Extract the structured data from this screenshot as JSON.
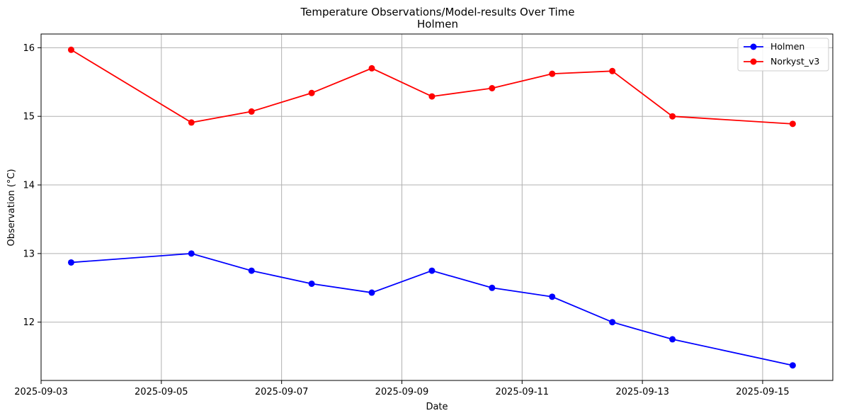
{
  "chart_data": {
    "type": "line",
    "title": "Temperature Observations/Model-results Over Time",
    "subtitle": "Holmen",
    "xlabel": "Date",
    "ylabel": "Observation (°C)",
    "x_axis_type": "date",
    "x_ticks": [
      "2025-09-03",
      "2025-09-05",
      "2025-09-07",
      "2025-09-09",
      "2025-09-11",
      "2025-09-13",
      "2025-09-15"
    ],
    "y_ticks": [
      12,
      13,
      14,
      15,
      16
    ],
    "xlim": [
      "2025-09-03 00:00",
      "2025-09-16 04:00"
    ],
    "ylim": [
      11.15,
      16.2
    ],
    "grid": true,
    "legend_position": "upper right",
    "series": [
      {
        "name": "Holmen",
        "color": "#0000ff",
        "marker": "circle",
        "x": [
          "2025-09-03 12:00",
          "2025-09-05 12:00",
          "2025-09-06 12:00",
          "2025-09-07 12:00",
          "2025-09-08 12:00",
          "2025-09-09 12:00",
          "2025-09-10 12:00",
          "2025-09-11 12:00",
          "2025-09-12 12:00",
          "2025-09-13 12:00",
          "2025-09-15 12:00"
        ],
        "y": [
          12.87,
          13.0,
          12.75,
          12.56,
          12.43,
          12.75,
          12.5,
          12.37,
          12.0,
          11.75,
          11.37
        ]
      },
      {
        "name": "Norkyst_v3",
        "color": "#ff0000",
        "marker": "circle",
        "x": [
          "2025-09-03 12:00",
          "2025-09-05 12:00",
          "2025-09-06 12:00",
          "2025-09-07 12:00",
          "2025-09-08 12:00",
          "2025-09-09 12:00",
          "2025-09-10 12:00",
          "2025-09-11 12:00",
          "2025-09-12 12:00",
          "2025-09-13 12:00",
          "2025-09-15 12:00"
        ],
        "y": [
          15.97,
          14.91,
          15.07,
          15.34,
          15.7,
          15.29,
          15.41,
          15.62,
          15.66,
          15.0,
          14.89
        ]
      }
    ]
  }
}
